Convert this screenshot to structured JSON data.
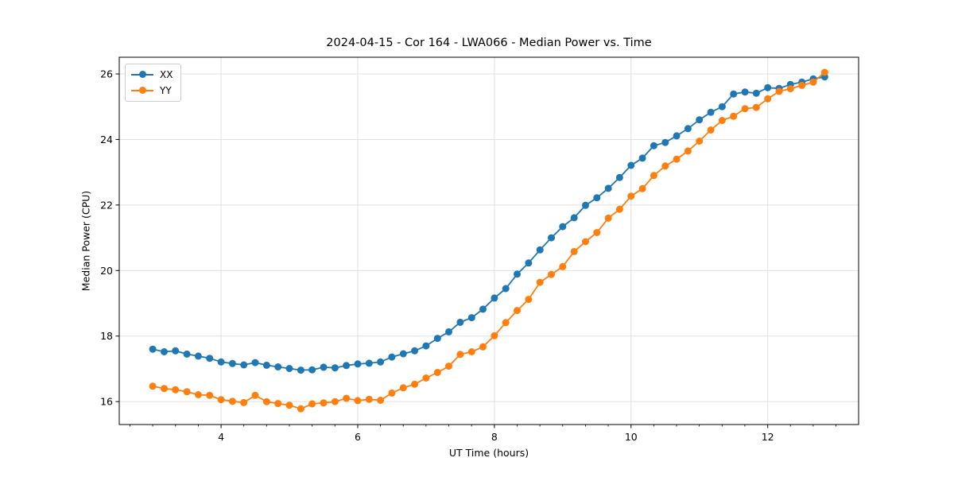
{
  "figure": {
    "background": "#ffffff"
  },
  "chart_data": {
    "type": "line",
    "title": "2024-04-15 - Cor 164 - LWA066 - Median Power vs. Time",
    "xlabel": "UT Time (hours)",
    "ylabel": "Median Power (CPU)",
    "xlim": [
      2.51,
      13.33
    ],
    "ylim": [
      15.3,
      26.51
    ],
    "xticks": [
      4,
      6,
      8,
      10,
      12
    ],
    "yticks": [
      16,
      18,
      20,
      22,
      24,
      26
    ],
    "x_minor_step": 0.3333,
    "grid": true,
    "grid_color": "#e0e0e0",
    "spine_color": "#000000",
    "legend_position": "upper left",
    "x": [
      3.0,
      3.167,
      3.333,
      3.5,
      3.667,
      3.833,
      4.0,
      4.167,
      4.333,
      4.5,
      4.667,
      4.833,
      5.0,
      5.167,
      5.333,
      5.5,
      5.667,
      5.833,
      6.0,
      6.167,
      6.333,
      6.5,
      6.667,
      6.833,
      7.0,
      7.167,
      7.333,
      7.5,
      7.667,
      7.833,
      8.0,
      8.167,
      8.333,
      8.5,
      8.667,
      8.833,
      9.0,
      9.167,
      9.333,
      9.5,
      9.667,
      9.833,
      10.0,
      10.167,
      10.333,
      10.5,
      10.667,
      10.833,
      11.0,
      11.167,
      11.333,
      11.5,
      11.667,
      11.833,
      12.0,
      12.167,
      12.333,
      12.5,
      12.667,
      12.833
    ],
    "series": [
      {
        "name": "XX",
        "color": "#1f77b4",
        "values": [
          17.6,
          17.52,
          17.55,
          17.45,
          17.39,
          17.32,
          17.21,
          17.16,
          17.12,
          17.19,
          17.11,
          17.06,
          17.01,
          16.96,
          16.97,
          17.05,
          17.03,
          17.1,
          17.15,
          17.17,
          17.21,
          17.36,
          17.46,
          17.55,
          17.7,
          17.93,
          18.13,
          18.42,
          18.56,
          18.82,
          19.16,
          19.45,
          19.89,
          20.23,
          20.63,
          21.0,
          21.34,
          21.61,
          21.99,
          22.22,
          22.51,
          22.84,
          23.21,
          23.43,
          23.81,
          23.91,
          24.11,
          24.33,
          24.6,
          24.83,
          25.0,
          25.39,
          25.45,
          25.41,
          25.58,
          25.56,
          25.68,
          25.75,
          25.85,
          25.91
        ]
      },
      {
        "name": "YY",
        "color": "#ff7f0e",
        "values": [
          16.47,
          16.4,
          16.36,
          16.3,
          16.21,
          16.19,
          16.06,
          16.01,
          15.97,
          16.19,
          16.0,
          15.94,
          15.89,
          15.78,
          15.93,
          15.96,
          16.0,
          16.1,
          16.03,
          16.07,
          16.04,
          16.26,
          16.42,
          16.53,
          16.72,
          16.89,
          17.08,
          17.44,
          17.52,
          17.67,
          18.01,
          18.41,
          18.78,
          19.12,
          19.64,
          19.88,
          20.12,
          20.58,
          20.88,
          21.16,
          21.6,
          21.87,
          22.27,
          22.5,
          22.9,
          23.19,
          23.4,
          23.65,
          23.95,
          24.29,
          24.58,
          24.71,
          24.94,
          24.98,
          25.24,
          25.47,
          25.55,
          25.65,
          25.75,
          26.05
        ]
      }
    ]
  }
}
